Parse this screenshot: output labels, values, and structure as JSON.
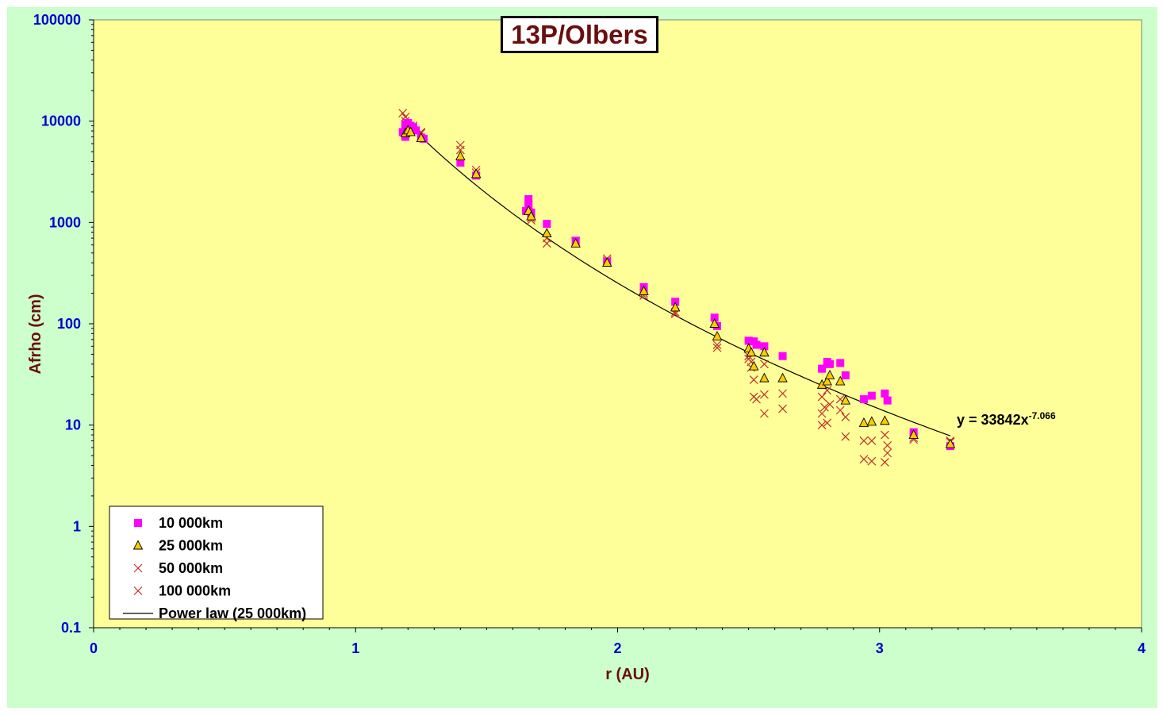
{
  "chart_data": {
    "type": "scatter",
    "title": "13P/Olbers",
    "xlabel": "r (AU)",
    "ylabel": "Afrho (cm)",
    "xlim": [
      0,
      4
    ],
    "ylim": [
      0.1,
      100000
    ],
    "yscale": "log",
    "x_ticks": [
      "0",
      "1",
      "2",
      "3",
      "4"
    ],
    "y_ticks": [
      "0.1",
      "1",
      "10",
      "100",
      "1000",
      "10000",
      "100000"
    ],
    "grid": false,
    "legend_position": "bottom-left",
    "colors": {
      "plot_bg": "#ffff99",
      "frame_bg": "#ccffcc",
      "s10k": "#ff00ff",
      "s25k_fill": "#ffcc00",
      "cross": "#c0302a",
      "fit": "#000000"
    },
    "series": [
      {
        "name": "10 000km",
        "marker": "square",
        "points": [
          [
            1.18,
            7800
          ],
          [
            1.19,
            9300
          ],
          [
            1.19,
            7000
          ],
          [
            1.2,
            9600
          ],
          [
            1.2,
            8800
          ],
          [
            1.21,
            9000
          ],
          [
            1.22,
            8700
          ],
          [
            1.23,
            8100
          ],
          [
            1.25,
            6900
          ],
          [
            1.26,
            6700
          ],
          [
            1.4,
            3900
          ],
          [
            1.46,
            2900
          ],
          [
            1.65,
            1300
          ],
          [
            1.66,
            1450
          ],
          [
            1.66,
            1700
          ],
          [
            1.67,
            1250
          ],
          [
            1.73,
            970
          ],
          [
            1.84,
            660
          ],
          [
            1.96,
            410
          ],
          [
            2.1,
            230
          ],
          [
            2.22,
            165
          ],
          [
            2.37,
            115
          ],
          [
            2.38,
            95
          ],
          [
            2.5,
            68
          ],
          [
            2.52,
            67
          ],
          [
            2.53,
            62
          ],
          [
            2.56,
            60
          ],
          [
            2.63,
            48
          ],
          [
            2.78,
            36
          ],
          [
            2.8,
            42
          ],
          [
            2.81,
            40
          ],
          [
            2.85,
            41
          ],
          [
            2.87,
            31
          ],
          [
            2.94,
            18
          ],
          [
            2.97,
            19.5
          ],
          [
            3.02,
            20.5
          ],
          [
            3.03,
            17.5
          ],
          [
            3.13,
            8.5
          ],
          [
            3.27,
            6.2
          ]
        ]
      },
      {
        "name": "25 000km",
        "marker": "triangle",
        "points": [
          [
            1.19,
            7600
          ],
          [
            1.2,
            8100
          ],
          [
            1.21,
            7800
          ],
          [
            1.25,
            6800
          ],
          [
            1.4,
            4500
          ],
          [
            1.46,
            3000
          ],
          [
            1.66,
            1300
          ],
          [
            1.67,
            1150
          ],
          [
            1.73,
            780
          ],
          [
            1.84,
            620
          ],
          [
            1.96,
            400
          ],
          [
            2.1,
            210
          ],
          [
            2.22,
            145
          ],
          [
            2.37,
            100
          ],
          [
            2.38,
            75
          ],
          [
            2.5,
            57
          ],
          [
            2.51,
            52
          ],
          [
            2.52,
            38
          ],
          [
            2.56,
            29
          ],
          [
            2.56,
            52
          ],
          [
            2.63,
            29
          ],
          [
            2.78,
            25
          ],
          [
            2.8,
            27
          ],
          [
            2.81,
            31
          ],
          [
            2.85,
            27
          ],
          [
            2.87,
            17.5
          ],
          [
            2.94,
            10.5
          ],
          [
            2.97,
            10.8
          ],
          [
            3.02,
            11
          ],
          [
            3.13,
            8
          ],
          [
            3.27,
            6.5
          ]
        ]
      },
      {
        "name": "50 000km",
        "marker": "x",
        "points": [
          [
            1.18,
            12000
          ],
          [
            1.19,
            10000
          ],
          [
            1.2,
            9000
          ],
          [
            1.22,
            8500
          ],
          [
            1.25,
            7800
          ],
          [
            1.4,
            5800
          ],
          [
            1.46,
            3300
          ],
          [
            1.66,
            1500
          ],
          [
            1.67,
            1100
          ],
          [
            1.73,
            700
          ],
          [
            1.84,
            660
          ],
          [
            1.96,
            440
          ],
          [
            2.1,
            200
          ],
          [
            2.22,
            130
          ],
          [
            2.38,
            62
          ],
          [
            2.5,
            48
          ],
          [
            2.51,
            42
          ],
          [
            2.52,
            28
          ],
          [
            2.56,
            40
          ],
          [
            2.56,
            20
          ],
          [
            2.63,
            20.5
          ],
          [
            2.78,
            19
          ],
          [
            2.79,
            15
          ],
          [
            2.8,
            22
          ],
          [
            2.85,
            18
          ],
          [
            2.87,
            12
          ],
          [
            2.94,
            7
          ],
          [
            2.97,
            7
          ],
          [
            3.02,
            8
          ],
          [
            3.03,
            6.3
          ],
          [
            3.13,
            7.5
          ],
          [
            3.27,
            7
          ]
        ]
      },
      {
        "name": "100 000km",
        "marker": "x",
        "points": [
          [
            1.19,
            11000
          ],
          [
            1.2,
            8600
          ],
          [
            1.22,
            9000
          ],
          [
            1.25,
            7600
          ],
          [
            1.4,
            5200
          ],
          [
            1.46,
            3100
          ],
          [
            1.66,
            1400
          ],
          [
            1.67,
            1050
          ],
          [
            1.73,
            620
          ],
          [
            1.84,
            640
          ],
          [
            1.96,
            420
          ],
          [
            2.1,
            190
          ],
          [
            2.22,
            125
          ],
          [
            2.38,
            58
          ],
          [
            2.5,
            45
          ],
          [
            2.51,
            37
          ],
          [
            2.52,
            19
          ],
          [
            2.53,
            18
          ],
          [
            2.56,
            13
          ],
          [
            2.63,
            14.5
          ],
          [
            2.78,
            13
          ],
          [
            2.78,
            10
          ],
          [
            2.8,
            10.5
          ],
          [
            2.81,
            16
          ],
          [
            2.85,
            14
          ],
          [
            2.87,
            7.7
          ],
          [
            2.94,
            4.6
          ],
          [
            2.97,
            4.4
          ],
          [
            3.02,
            4.3
          ],
          [
            3.03,
            5.3
          ],
          [
            3.13,
            7.2
          ],
          [
            3.27,
            6.8
          ]
        ]
      },
      {
        "name": "Power law (25 000km)",
        "type": "fit",
        "coefficient": 33842,
        "exponent": -7.066,
        "x_range": [
          1.25,
          3.27
        ]
      }
    ],
    "annotation": {
      "prefix": "y = 33842x",
      "exponent": "-7.066"
    }
  }
}
